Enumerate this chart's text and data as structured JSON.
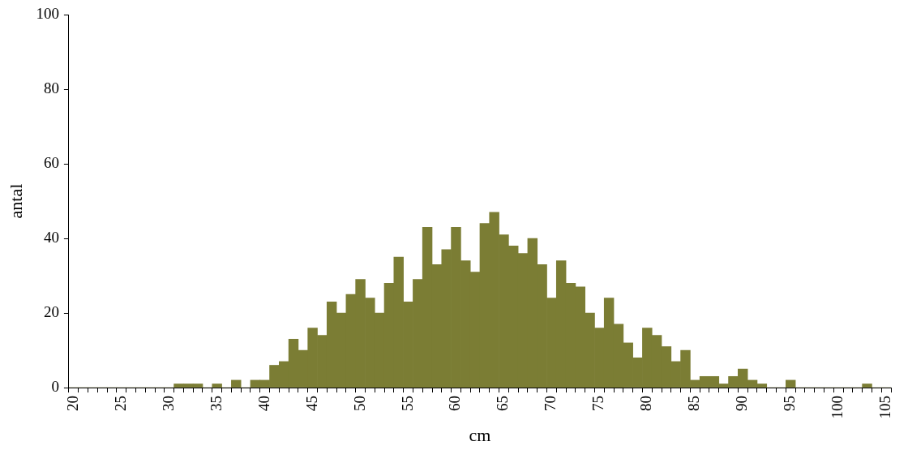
{
  "chart_data": {
    "type": "bar",
    "xlabel": "cm",
    "ylabel": "antal",
    "color": "#7b7d34",
    "categories": [
      "20",
      null,
      null,
      null,
      null,
      "25",
      null,
      null,
      null,
      null,
      "30",
      null,
      null,
      null,
      null,
      "35",
      null,
      null,
      null,
      null,
      "40",
      null,
      null,
      null,
      null,
      "45",
      null,
      null,
      null,
      null,
      "50",
      null,
      null,
      null,
      null,
      "55",
      null,
      null,
      null,
      null,
      "60",
      null,
      null,
      null,
      null,
      "65",
      null,
      null,
      null,
      null,
      "70",
      null,
      null,
      null,
      null,
      "75",
      null,
      null,
      null,
      null,
      "80",
      null,
      null,
      null,
      null,
      "85",
      null,
      null,
      null,
      null,
      "90",
      null,
      null,
      null,
      null,
      "95",
      null,
      null,
      null,
      null,
      "100",
      null,
      null,
      null,
      null,
      "105"
    ],
    "values": [
      0,
      0,
      0,
      0,
      0,
      0,
      0,
      0,
      0,
      0,
      0,
      1,
      1,
      1,
      0,
      1,
      0,
      2,
      0,
      2,
      2,
      6,
      7,
      13,
      10,
      16,
      14,
      23,
      20,
      25,
      29,
      24,
      20,
      28,
      35,
      23,
      29,
      43,
      33,
      37,
      43,
      34,
      31,
      44,
      47,
      41,
      38,
      36,
      40,
      33,
      24,
      34,
      28,
      27,
      20,
      16,
      24,
      17,
      12,
      8,
      16,
      14,
      11,
      7,
      10,
      2,
      3,
      3,
      1,
      3,
      5,
      2,
      1,
      0,
      0,
      2,
      0,
      0,
      0,
      0,
      0,
      0,
      0,
      1,
      0,
      0
    ],
    "ylim": [
      0,
      100
    ],
    "yticks": [
      0,
      20,
      40,
      60,
      80,
      100
    ],
    "grid": false,
    "legend": false
  }
}
